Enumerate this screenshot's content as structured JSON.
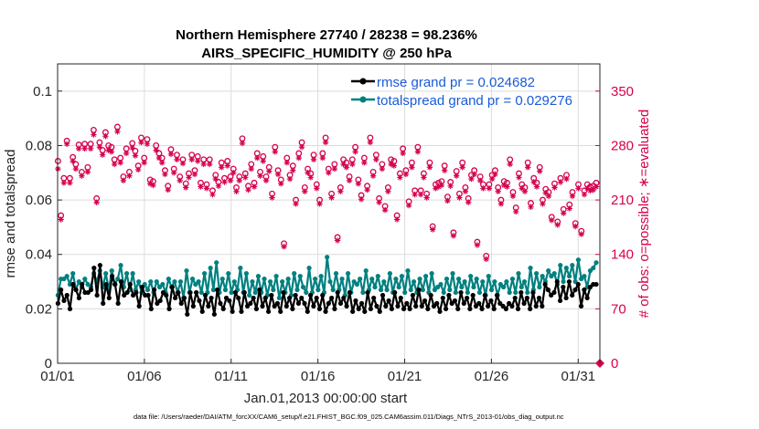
{
  "chart_data": {
    "type": "line",
    "title_line1": "Northern Hemisphere 27740 / 28238 = 98.236%",
    "title_line2": "AIRS_SPECIFIC_HUMIDITY @ 250 hPa",
    "xlabel": "Jan.01,2013 00:00:00 start",
    "ylabel_left": "rmse and totalspread",
    "ylabel_right": "# of obs: o=possible; ∗=evaluated",
    "x_ticks": [
      "01/01",
      "01/06",
      "01/11",
      "01/16",
      "01/21",
      "01/26",
      "01/31"
    ],
    "x_tick_days": [
      0,
      5,
      10,
      15,
      20,
      25,
      30
    ],
    "xlim_days": [
      0,
      31.25
    ],
    "ylim_left": [
      0,
      0.11
    ],
    "y_ticks_left": [
      "0",
      "0.02",
      "0.04",
      "0.06",
      "0.08",
      "0.1"
    ],
    "ylim_right": [
      0,
      385
    ],
    "y_ticks_right": [
      "0",
      "70",
      "140",
      "210",
      "280",
      "350"
    ],
    "legend": {
      "rmse": "rmse grand pr = 0.024682",
      "spread": "totalspread grand pr = 0.029276"
    },
    "colors": {
      "rmse": "#000000",
      "spread": "#008080",
      "obs": "#d6004e",
      "legend_text": "#1a5bd6"
    },
    "series": [
      {
        "name": "rmse",
        "values": [
          0.022,
          0.027,
          0.023,
          0.025,
          0.02,
          0.029,
          0.027,
          0.024,
          0.029,
          0.026,
          0.026,
          0.027,
          0.035,
          0.025,
          0.036,
          0.022,
          0.029,
          0.024,
          0.032,
          0.029,
          0.022,
          0.03,
          0.025,
          0.026,
          0.029,
          0.025,
          0.026,
          0.021,
          0.028,
          0.025,
          0.025,
          0.02,
          0.027,
          0.022,
          0.023,
          0.026,
          0.025,
          0.02,
          0.028,
          0.024,
          0.026,
          0.022,
          0.024,
          0.018,
          0.026,
          0.021,
          0.026,
          0.023,
          0.019,
          0.025,
          0.021,
          0.024,
          0.018,
          0.027,
          0.022,
          0.02,
          0.024,
          0.023,
          0.019,
          0.026,
          0.024,
          0.019,
          0.026,
          0.021,
          0.022,
          0.024,
          0.02,
          0.027,
          0.021,
          0.024,
          0.019,
          0.025,
          0.021,
          0.022,
          0.019,
          0.026,
          0.021,
          0.024,
          0.02,
          0.025,
          0.022,
          0.024,
          0.022,
          0.019,
          0.025,
          0.021,
          0.024,
          0.02,
          0.025,
          0.019,
          0.022,
          0.024,
          0.02,
          0.026,
          0.022,
          0.024,
          0.021,
          0.026,
          0.019,
          0.023,
          0.02,
          0.022,
          0.019,
          0.026,
          0.02,
          0.024,
          0.021,
          0.019,
          0.025,
          0.021,
          0.023,
          0.02,
          0.026,
          0.021,
          0.024,
          0.02,
          0.022,
          0.02,
          0.025,
          0.021,
          0.027,
          0.021,
          0.023,
          0.02,
          0.025,
          0.021,
          0.022,
          0.019,
          0.024,
          0.02,
          0.025,
          0.022,
          0.023,
          0.02,
          0.026,
          0.022,
          0.024,
          0.02,
          0.025,
          0.021,
          0.022,
          0.02,
          0.025,
          0.021,
          0.023,
          0.02,
          0.025,
          0.022,
          0.021,
          0.02,
          0.022,
          0.021,
          0.024,
          0.02,
          0.026,
          0.022,
          0.024,
          0.02,
          0.026,
          0.021,
          0.024,
          0.021,
          0.029,
          0.027,
          0.025,
          0.026,
          0.03,
          0.023,
          0.028,
          0.024,
          0.03,
          0.025,
          0.027,
          0.029,
          0.021,
          0.027,
          0.024,
          0.028,
          0.029,
          0.029
        ]
      },
      {
        "name": "totalspread",
        "values": [
          0.025,
          0.031,
          0.031,
          0.032,
          0.029,
          0.033,
          0.027,
          0.03,
          0.028,
          0.031,
          0.029,
          0.028,
          0.033,
          0.03,
          0.034,
          0.028,
          0.033,
          0.027,
          0.034,
          0.029,
          0.031,
          0.036,
          0.028,
          0.033,
          0.027,
          0.033,
          0.027,
          0.03,
          0.026,
          0.029,
          0.027,
          0.03,
          0.026,
          0.03,
          0.028,
          0.029,
          0.026,
          0.031,
          0.028,
          0.03,
          0.026,
          0.03,
          0.024,
          0.034,
          0.026,
          0.031,
          0.029,
          0.03,
          0.026,
          0.033,
          0.026,
          0.035,
          0.027,
          0.037,
          0.026,
          0.031,
          0.027,
          0.033,
          0.026,
          0.03,
          0.027,
          0.035,
          0.026,
          0.033,
          0.025,
          0.03,
          0.026,
          0.032,
          0.026,
          0.031,
          0.025,
          0.03,
          0.027,
          0.032,
          0.024,
          0.03,
          0.026,
          0.031,
          0.025,
          0.033,
          0.027,
          0.032,
          0.028,
          0.026,
          0.035,
          0.026,
          0.031,
          0.027,
          0.032,
          0.026,
          0.039,
          0.03,
          0.027,
          0.033,
          0.027,
          0.031,
          0.025,
          0.033,
          0.026,
          0.03,
          0.029,
          0.031,
          0.026,
          0.034,
          0.027,
          0.031,
          0.028,
          0.032,
          0.027,
          0.03,
          0.027,
          0.033,
          0.026,
          0.031,
          0.028,
          0.032,
          0.026,
          0.034,
          0.027,
          0.03,
          0.026,
          0.031,
          0.027,
          0.032,
          0.026,
          0.033,
          0.027,
          0.028,
          0.029,
          0.026,
          0.031,
          0.027,
          0.033,
          0.026,
          0.031,
          0.028,
          0.03,
          0.026,
          0.032,
          0.028,
          0.031,
          0.026,
          0.03,
          0.025,
          0.032,
          0.027,
          0.03,
          0.025,
          0.029,
          0.028,
          0.03,
          0.026,
          0.031,
          0.026,
          0.033,
          0.028,
          0.03,
          0.026,
          0.035,
          0.027,
          0.033,
          0.028,
          0.032,
          0.03,
          0.034,
          0.032,
          0.033,
          0.029,
          0.036,
          0.03,
          0.035,
          0.032,
          0.036,
          0.03,
          0.038,
          0.031,
          0.032,
          0.028,
          0.034,
          0.035,
          0.037
        ]
      },
      {
        "name": "obs_possible",
        "values": [
          260,
          190,
          238,
          286,
          238,
          265,
          256,
          281,
          246,
          282,
          252,
          282,
          300,
          212,
          284,
          274,
          297,
          280,
          278,
          262,
          304,
          264,
          240,
          276,
          246,
          283,
          273,
          254,
          290,
          264,
          288,
          236,
          234,
          280,
          270,
          264,
          248,
          228,
          275,
          250,
          268,
          240,
          262,
          231,
          244,
          268,
          248,
          266,
          232,
          262,
          230,
          262,
          222,
          242,
          233,
          258,
          238,
          260,
          240,
          250,
          226,
          240,
          289,
          244,
          228,
          256,
          232,
          270,
          246,
          266,
          240,
          252,
          218,
          278,
          248,
          236,
          154,
          264,
          242,
          254,
          210,
          270,
          284,
          226,
          250,
          244,
          268,
          230,
          210,
          270,
          290,
          250,
          218,
          256,
          162,
          226,
          262,
          258,
          240,
          262,
          278,
          236,
          216,
          264,
          228,
          290,
          246,
          268,
          212,
          256,
          202,
          226,
          262,
          260,
          190,
          244,
          276,
          248,
          208,
          258,
          222,
          278,
          222,
          244,
          218,
          258,
          176,
          230,
          232,
          234,
          254,
          214,
          233,
          168,
          247,
          218,
          258,
          226,
          212,
          242,
          248,
          156,
          240,
          230,
          138,
          230,
          242,
          248,
          226,
          210,
          234,
          232,
          262,
          220,
          200,
          244,
          230,
          226,
          258,
          206,
          238,
          232,
          252,
          210,
          224,
          220,
          188,
          231,
          182,
          238,
          198,
          242,
          204,
          220,
          180,
          230,
          170,
          222,
          230,
          227,
          228,
          232
        ]
      },
      {
        "name": "obs_evaluated",
        "values": [
          250,
          185,
          232,
          282,
          232,
          260,
          250,
          276,
          241,
          276,
          246,
          276,
          294,
          207,
          278,
          268,
          292,
          274,
          272,
          256,
          298,
          258,
          235,
          270,
          241,
          277,
          267,
          249,
          284,
          258,
          282,
          231,
          229,
          274,
          264,
          258,
          243,
          223,
          269,
          245,
          262,
          235,
          257,
          226,
          239,
          262,
          243,
          260,
          227,
          256,
          225,
          256,
          217,
          237,
          228,
          252,
          233,
          254,
          235,
          245,
          221,
          235,
          283,
          239,
          223,
          250,
          227,
          264,
          241,
          260,
          235,
          247,
          213,
          272,
          243,
          231,
          150,
          258,
          237,
          248,
          205,
          264,
          278,
          221,
          245,
          239,
          262,
          225,
          205,
          264,
          284,
          245,
          213,
          250,
          158,
          221,
          256,
          252,
          235,
          256,
          272,
          231,
          211,
          258,
          223,
          284,
          241,
          262,
          207,
          250,
          197,
          221,
          256,
          254,
          185,
          239,
          270,
          243,
          203,
          252,
          217,
          272,
          217,
          239,
          213,
          252,
          172,
          225,
          227,
          229,
          248,
          209,
          228,
          164,
          241,
          213,
          252,
          221,
          207,
          237,
          243,
          152,
          235,
          225,
          134,
          225,
          237,
          243,
          221,
          205,
          229,
          227,
          256,
          215,
          195,
          239,
          225,
          221,
          252,
          201,
          233,
          227,
          247,
          205,
          219,
          215,
          184,
          226,
          178,
          233,
          193,
          237,
          199,
          215,
          176,
          225,
          166,
          217,
          225,
          222,
          223,
          227
        ]
      }
    ],
    "footnote": "data file: /Users/raeder/DAI/ATM_forcXX/CAM6_setup/f.e21.FHIST_BGC.f09_025.CAM6assim.011/Diags_NTrS_2013-01/obs_diag_output.nc"
  }
}
